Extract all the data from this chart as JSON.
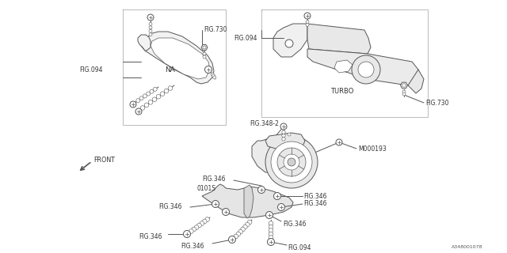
{
  "bg_color": "#ffffff",
  "line_color": "#555555",
  "watermark": "A348001078",
  "lw": 0.7,
  "labels": {
    "FIG094_tl": "FIG.094",
    "FIG730_top": "FIG.730",
    "NA": "NA",
    "FIG094_tr": "FIG.094",
    "TURBO": "TURBO",
    "FIG730_right": "FIG.730",
    "FIG348_2": "FIG.348-2",
    "M000193": "M000193",
    "FRONT": "FRONT",
    "0101S": "0101S",
    "FIG346": "FIG.346",
    "FIG094_bot": "FIG.094"
  }
}
